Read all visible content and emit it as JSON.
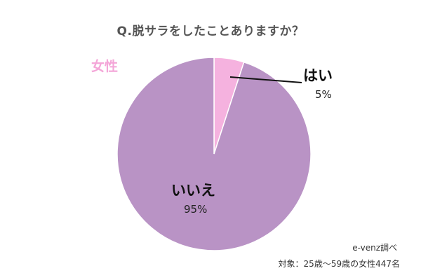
{
  "chart_data": {
    "type": "pie",
    "title": "Q.脱サラをしたことありますか？",
    "category": "女性",
    "slices": [
      {
        "label": "はい",
        "value": 5,
        "value_label": "5%",
        "color": "#f5b2df"
      },
      {
        "label": "いいえ",
        "value": 95,
        "value_label": "95%",
        "color": "#b993c5"
      }
    ],
    "legend": "none"
  },
  "footer": {
    "source": "e-venz調べ",
    "note": "対象：25歳〜59歳の女性447名"
  }
}
